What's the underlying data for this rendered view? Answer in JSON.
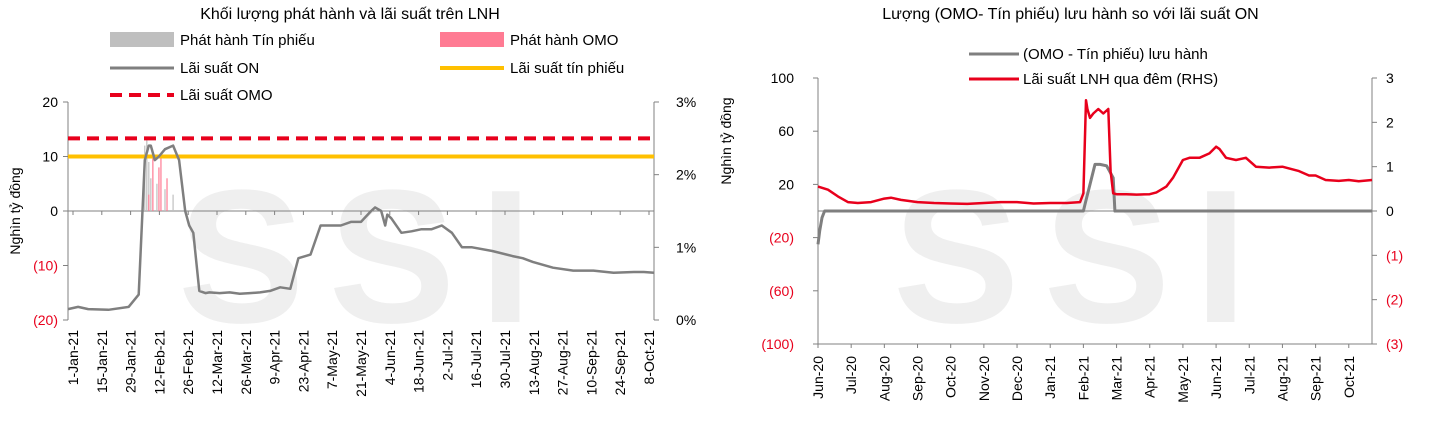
{
  "chart_data": [
    {
      "type": "line",
      "title": "Khối lượng phát hành và lãi suất trên LNH",
      "ylabel": "Nghìn tỷ đồng",
      "ylim": [
        -20,
        20
      ],
      "y_ticks": [
        "20",
        "10",
        "0",
        "(10)",
        "(20)"
      ],
      "y_tick_values": [
        20,
        10,
        0,
        -10,
        -20
      ],
      "y_tick_colors": [
        "#000000",
        "#000000",
        "#000000",
        "#e8001c",
        "#e8001c"
      ],
      "y2lim": [
        0,
        3
      ],
      "y2_ticks": [
        "3%",
        "2%",
        "1%",
        "0%"
      ],
      "y2_tick_values": [
        3,
        2,
        1,
        0
      ],
      "x_ticks": [
        "1-Jan-21",
        "15-Jan-21",
        "29-Jan-21",
        "12-Feb-21",
        "26-Feb-21",
        "12-Mar-21",
        "26-Mar-21",
        "9-Apr-21",
        "23-Apr-21",
        "7-May-21",
        "21-May-21",
        "4-Jun-21",
        "18-Jun-21",
        "2-Jul-21",
        "16-Jul-21",
        "30-Jul-21",
        "13-Aug-21",
        "27-Aug-21",
        "10-Sep-21",
        "24-Sep-21",
        "8-Oct-21"
      ],
      "x_range_days": [
        0,
        290
      ],
      "watermark": "SSI",
      "legend": [
        {
          "label": "Phát hành Tín phiếu",
          "color": "#bfbfbf",
          "style": "bar"
        },
        {
          "label": "Phát hành OMO",
          "color": "#ff7b93",
          "style": "bar"
        },
        {
          "label": "Lãi suất ON",
          "color": "#7f7f7f",
          "style": "line"
        },
        {
          "label": "Lãi suất tín phiếu",
          "color": "#ffc000",
          "style": "line"
        },
        {
          "label": "Lãi suất OMO",
          "color": "#e8001c",
          "style": "dashed"
        }
      ],
      "series": [
        {
          "name": "Lãi suất ON",
          "axis": "right",
          "color": "#7f7f7f",
          "x": [
            0,
            5,
            10,
            20,
            30,
            35,
            38,
            40,
            41,
            43,
            45,
            48,
            52,
            55,
            58,
            60,
            62,
            65,
            68,
            70,
            75,
            80,
            85,
            90,
            95,
            100,
            105,
            110,
            114,
            120,
            125,
            128,
            130,
            135,
            140,
            145,
            150,
            152,
            155,
            157,
            158,
            160,
            165,
            170,
            175,
            180,
            185,
            190,
            195,
            200,
            210,
            220,
            225,
            230,
            240,
            250,
            260,
            270,
            280,
            285,
            290
          ],
          "y": [
            0.15,
            0.18,
            0.15,
            0.14,
            0.18,
            0.35,
            2.2,
            2.4,
            2.4,
            2.2,
            2.25,
            2.35,
            2.4,
            2.2,
            1.5,
            1.3,
            1.2,
            0.4,
            0.37,
            0.38,
            0.37,
            0.38,
            0.36,
            0.37,
            0.38,
            0.4,
            0.45,
            0.43,
            0.85,
            0.9,
            1.3,
            1.3,
            1.3,
            1.3,
            1.35,
            1.35,
            1.5,
            1.55,
            1.5,
            1.3,
            1.45,
            1.4,
            1.2,
            1.22,
            1.25,
            1.25,
            1.3,
            1.2,
            1.0,
            1.0,
            0.95,
            0.88,
            0.85,
            0.8,
            0.72,
            0.68,
            0.68,
            0.65,
            0.66,
            0.66,
            0.65
          ]
        },
        {
          "name": "Lãi suất tín phiếu",
          "axis": "right",
          "color": "#ffc000",
          "constant": 2.25
        },
        {
          "name": "Lãi suất OMO",
          "axis": "right",
          "color": "#e8001c",
          "constant": 2.5
        },
        {
          "name": "Phát hành Tín phiếu",
          "axis": "left",
          "type": "bar",
          "color": "#bfbfbf",
          "x": [
            38,
            39,
            40,
            41,
            44,
            48,
            52
          ],
          "y": [
            12,
            13,
            9,
            6,
            5,
            4,
            3
          ]
        },
        {
          "name": "Phát hành OMO",
          "axis": "left",
          "type": "bar",
          "color": "#ff7b93",
          "x": [
            40,
            42,
            45,
            46,
            49
          ],
          "y": [
            3,
            11,
            8,
            10,
            6
          ]
        }
      ]
    },
    {
      "type": "line",
      "title": "Lượng (OMO- Tín phiếu) lưu hành so với lãi suất ON",
      "ylabel": "Nghìn tỷ đồng",
      "ylim": [
        -100,
        100
      ],
      "y_ticks": [
        "100",
        "60",
        "20",
        "(20)",
        "(60)",
        "(100)"
      ],
      "y_tick_values": [
        100,
        60,
        20,
        -20,
        -60,
        -100
      ],
      "y_tick_colors": [
        "#000000",
        "#000000",
        "#000000",
        "#e8001c",
        "#e8001c",
        "#e8001c"
      ],
      "y2lim": [
        -3,
        3
      ],
      "y2_ticks": [
        "3",
        "2",
        "1",
        "0",
        "(1)",
        "(2)",
        "(3)"
      ],
      "y2_tick_values": [
        3,
        2,
        1,
        0,
        -1,
        -2,
        -3
      ],
      "y2_tick_colors": [
        "#000000",
        "#000000",
        "#000000",
        "#000000",
        "#e8001c",
        "#e8001c",
        "#e8001c"
      ],
      "x_ticks": [
        "Jun-20",
        "Jul-20",
        "Aug-20",
        "Sep-20",
        "Oct-20",
        "Nov-20",
        "Dec-20",
        "Jan-21",
        "Feb-21",
        "Mar-21",
        "Apr-21",
        "May-21",
        "Jun-21",
        "Jul-21",
        "Aug-21",
        "Sep-21",
        "Oct-21"
      ],
      "x_range_months": [
        0,
        16.7
      ],
      "watermark": "SSI",
      "legend": [
        {
          "label": "(OMO - Tín phiếu) lưu hành",
          "color": "#7f7f7f",
          "style": "line"
        },
        {
          "label": "Lãi suất LNH qua đêm (RHS)",
          "color": "#e8001c",
          "style": "line"
        }
      ],
      "series": [
        {
          "name": "(OMO - Tín phiếu) lưu hành",
          "axis": "left",
          "color": "#7f7f7f",
          "x": [
            0,
            0.05,
            0.12,
            0.2,
            0.35,
            8.0,
            8.05,
            8.2,
            8.35,
            8.5,
            8.7,
            8.9,
            8.95,
            9.2,
            16.7
          ],
          "y": [
            -25,
            -15,
            -5,
            0,
            0,
            0,
            5,
            20,
            35,
            35,
            34,
            25,
            0,
            0,
            0
          ]
        },
        {
          "name": "Lãi suất LNH qua đêm (RHS)",
          "axis": "right",
          "color": "#e8001c",
          "x": [
            0,
            0.3,
            0.6,
            0.9,
            1.2,
            1.6,
            2.0,
            2.2,
            2.5,
            3.0,
            3.5,
            4.0,
            4.5,
            5.0,
            5.5,
            6.0,
            6.5,
            7.0,
            7.5,
            7.9,
            8.0,
            8.08,
            8.12,
            8.2,
            8.3,
            8.45,
            8.6,
            8.75,
            8.82,
            8.9,
            9.0,
            9.3,
            9.6,
            10.0,
            10.2,
            10.5,
            10.7,
            11.0,
            11.2,
            11.5,
            11.8,
            12.0,
            12.1,
            12.3,
            12.6,
            12.9,
            13.2,
            13.6,
            14.0,
            14.5,
            14.8,
            15.0,
            15.3,
            15.7,
            16.0,
            16.3,
            16.7
          ],
          "y": [
            0.55,
            0.48,
            0.33,
            0.2,
            0.18,
            0.2,
            0.28,
            0.3,
            0.25,
            0.2,
            0.18,
            0.17,
            0.16,
            0.18,
            0.2,
            0.2,
            0.17,
            0.18,
            0.18,
            0.2,
            0.4,
            2.5,
            2.3,
            2.1,
            2.2,
            2.3,
            2.2,
            2.3,
            0.9,
            0.4,
            0.38,
            0.38,
            0.37,
            0.38,
            0.42,
            0.55,
            0.75,
            1.15,
            1.2,
            1.2,
            1.3,
            1.45,
            1.4,
            1.2,
            1.15,
            1.2,
            1.0,
            0.98,
            1.0,
            0.9,
            0.8,
            0.8,
            0.7,
            0.68,
            0.7,
            0.67,
            0.7
          ]
        }
      ]
    }
  ]
}
